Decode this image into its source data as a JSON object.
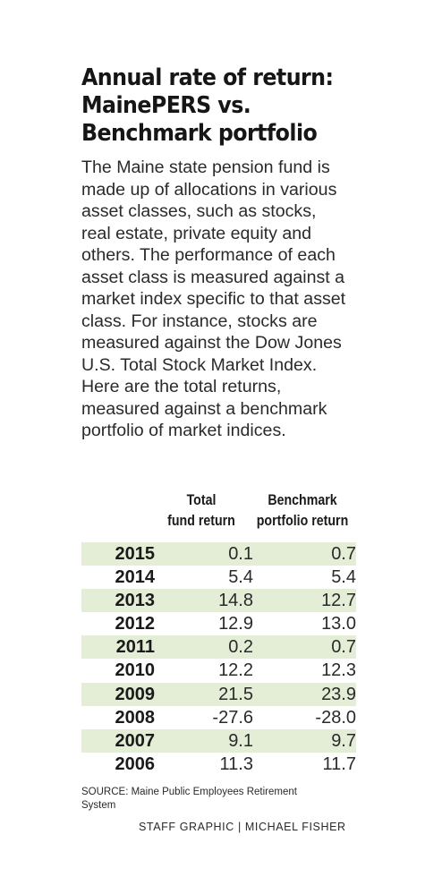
{
  "title_lines": [
    "Annual rate of return:",
    "MainePERS vs.",
    "Benchmark portfolio"
  ],
  "intro": "The Maine state pension fund is made up of allocations in various asset classes, such as stocks, real estate, private equity and others. The performance of each asset class is measured against a market index specific to that asset class. For instance, stocks are measured against the Dow Jones U.S. Total Stock Market Index. Here are the total returns, measured against a benchmark portfolio of market indices.",
  "chart_data": {
    "type": "table",
    "columns": [
      {
        "lines": [
          "Total",
          "fund return"
        ]
      },
      {
        "lines": [
          "Benchmark",
          "portfolio return"
        ]
      }
    ],
    "rows": [
      {
        "year": "2015",
        "total": "0.1",
        "benchmark": "0.7"
      },
      {
        "year": "2014",
        "total": "5.4",
        "benchmark": "5.4"
      },
      {
        "year": "2013",
        "total": "14.8",
        "benchmark": "12.7"
      },
      {
        "year": "2012",
        "total": "12.9",
        "benchmark": "13.0"
      },
      {
        "year": "2011",
        "total": "0.2",
        "benchmark": "0.7"
      },
      {
        "year": "2010",
        "total": "12.2",
        "benchmark": "12.3"
      },
      {
        "year": "2009",
        "total": "21.5",
        "benchmark": "23.9"
      },
      {
        "year": "2008",
        "total": "-27.6",
        "benchmark": "-28.0"
      },
      {
        "year": "2007",
        "total": "9.1",
        "benchmark": "9.7"
      },
      {
        "year": "2006",
        "total": "11.3",
        "benchmark": "11.7"
      }
    ],
    "row_shading": "alternating",
    "shade_color": "#e4edd6"
  },
  "source": "SOURCE: Maine Public Employees Retirement System",
  "credit": "STAFF GRAPHIC | MICHAEL FISHER"
}
